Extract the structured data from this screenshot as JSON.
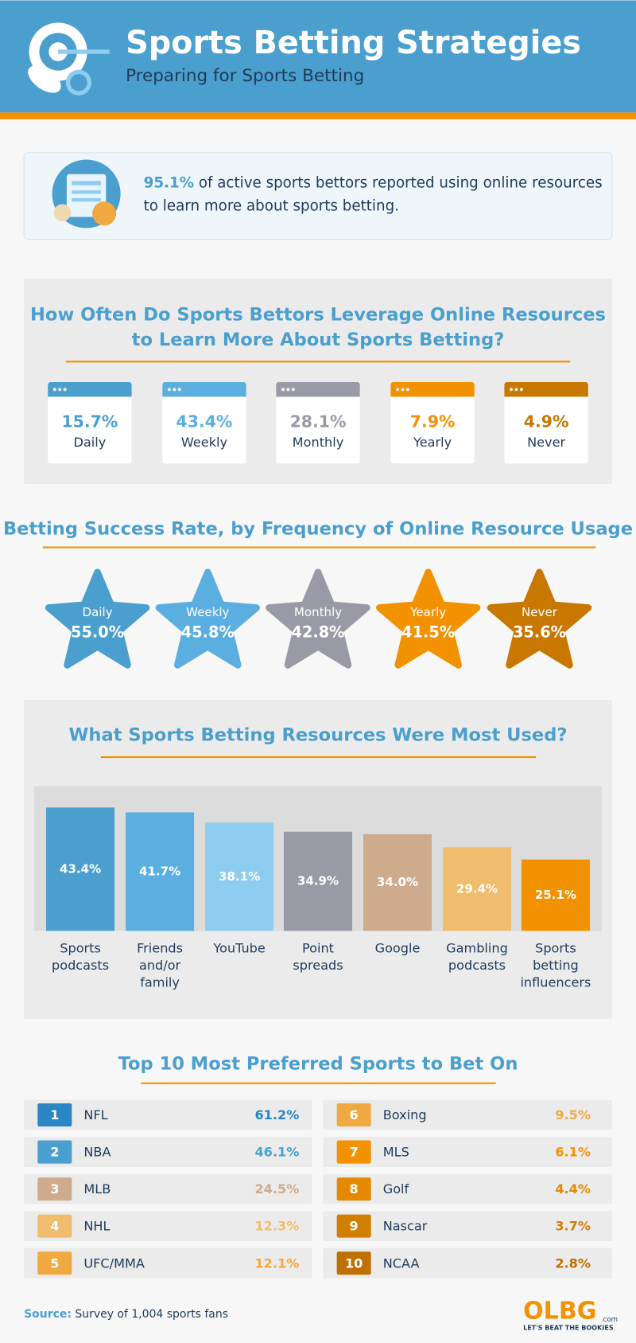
{
  "header": {
    "title": "Sports Betting Strategies",
    "subtitle": "Preparing for Sports Betting"
  },
  "stat": {
    "highlight": "95.1%",
    "lines": [
      "of active sports bettors reported using online resources",
      "to learn more about sports betting."
    ]
  },
  "frequency": {
    "title": [
      "How Often Do Sports Bettors Leverage Online Resources",
      "to Learn More About Sports Betting?"
    ],
    "items": [
      {
        "value": "15.7%",
        "label": "Daily",
        "color": "#4a9fce"
      },
      {
        "value": "43.4%",
        "label": "Weekly",
        "color": "#5aafe0"
      },
      {
        "value": "28.1%",
        "label": "Monthly",
        "color": "#9a9aa6"
      },
      {
        "value": "7.9%",
        "label": "Yearly",
        "color": "#f39200"
      },
      {
        "value": "4.9%",
        "label": "Never",
        "color": "#c87800"
      }
    ]
  },
  "success": {
    "title": "Betting Success Rate, by Frequency of Online Resource Usage",
    "items": [
      {
        "label": "Daily",
        "value": "55.0%",
        "color": "#4a9fce"
      },
      {
        "label": "Weekly",
        "value": "45.8%",
        "color": "#5aafe0"
      },
      {
        "label": "Monthly",
        "value": "42.8%",
        "color": "#9a9aa6"
      },
      {
        "label": "Yearly",
        "value": "41.5%",
        "color": "#f39200"
      },
      {
        "label": "Never",
        "value": "35.6%",
        "color": "#c87800"
      }
    ]
  },
  "resources": {
    "title": "What Sports Betting Resources Were Most Used?",
    "categories": [
      [
        "Sports",
        "podcasts"
      ],
      [
        "Friends",
        "and/or",
        "family"
      ],
      [
        "YouTube"
      ],
      [
        "Point",
        "spreads"
      ],
      [
        "Google"
      ],
      [
        "Gambling",
        "podcasts"
      ],
      [
        "Sports",
        "betting",
        "influencers"
      ]
    ],
    "values": [
      43.4,
      41.7,
      38.1,
      34.9,
      34.0,
      29.4,
      25.1
    ],
    "value_labels": [
      "43.4%",
      "41.7%",
      "38.1%",
      "34.9%",
      "34.0%",
      "29.4%",
      "25.1%"
    ],
    "colors": [
      "#4a9fce",
      "#5aafe0",
      "#8ecdf0",
      "#9a9aa6",
      "#cfab8e",
      "#f0bd6e",
      "#f39200"
    ]
  },
  "sports": {
    "title": "Top 10 Most Preferred Sports to Bet On",
    "rows": [
      {
        "rank": 1,
        "name": "NFL",
        "value": "61.2%",
        "color": "#2a86c4"
      },
      {
        "rank": 2,
        "name": "NBA",
        "value": "46.1%",
        "color": "#4a9fce"
      },
      {
        "rank": 3,
        "name": "MLB",
        "value": "24.5%",
        "color": "#cfab8e"
      },
      {
        "rank": 4,
        "name": "NHL",
        "value": "12.3%",
        "color": "#f0bd6e"
      },
      {
        "rank": 5,
        "name": "UFC/MMA",
        "value": "12.1%",
        "color": "#f0a840"
      },
      {
        "rank": 6,
        "name": "Boxing",
        "value": "9.5%",
        "color": "#f0a840"
      },
      {
        "rank": 7,
        "name": "MLS",
        "value": "6.1%",
        "color": "#f39200"
      },
      {
        "rank": 8,
        "name": "Golf",
        "value": "4.4%",
        "color": "#e58a00"
      },
      {
        "rank": 9,
        "name": "Nascar",
        "value": "3.7%",
        "color": "#d07f00"
      },
      {
        "rank": 10,
        "name": "NCAA",
        "value": "2.8%",
        "color": "#bf7000"
      }
    ]
  },
  "footer": {
    "source_label": "Source:",
    "source": "Survey of 1,004 sports fans",
    "logo": "OLBG",
    "logo_suffix": ".com",
    "tagline": "LET'S BEAT THE BOOKIES"
  }
}
